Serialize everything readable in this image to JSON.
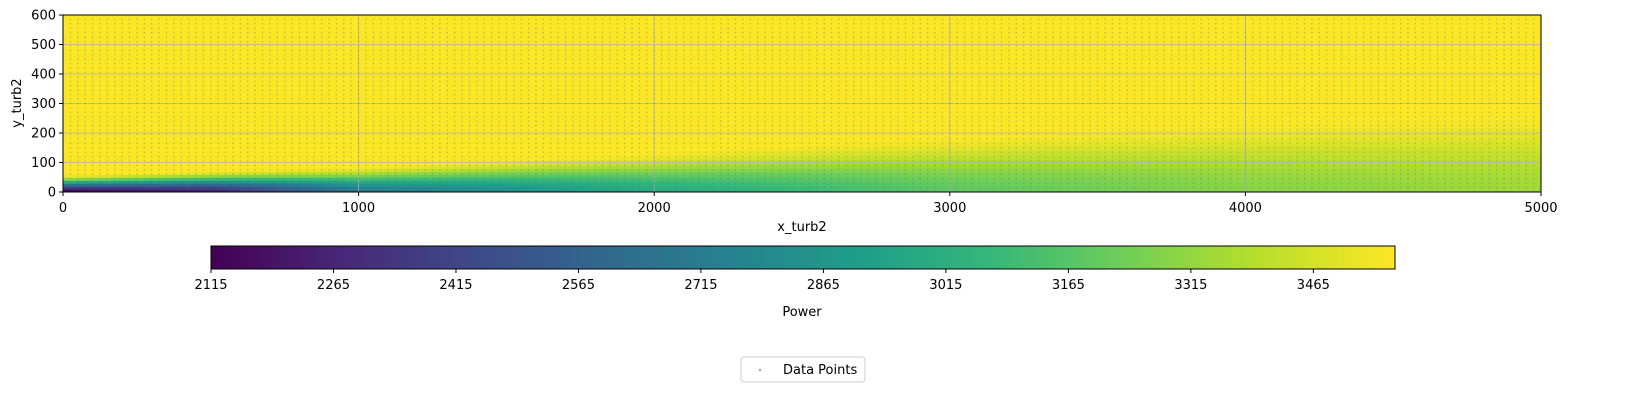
{
  "chart_data": {
    "type": "heatmap",
    "title": "",
    "xlabel": "x_turb2",
    "ylabel": "y_turb2",
    "xlim": [
      0,
      5000
    ],
    "ylim": [
      0,
      600
    ],
    "x_ticks": [
      0,
      1000,
      2000,
      3000,
      4000,
      5000
    ],
    "y_ticks": [
      0,
      100,
      200,
      300,
      400,
      500,
      600
    ],
    "grid": true,
    "colormap": "viridis",
    "colorbar": {
      "label": "Power",
      "range": [
        2115,
        3565
      ],
      "ticks": [
        2115,
        2265,
        2415,
        2565,
        2715,
        2865,
        3015,
        3165,
        3315,
        3465
      ],
      "orientation": "horizontal"
    },
    "field_model": {
      "description_of_values": "Power over (x_turb2, y_turb2): minimum near origin, saturates at high y; wake widens with x",
      "min_power": 2115,
      "max_power": 3565,
      "wake_half_width_at_x": [
        [
          0,
          60
        ],
        [
          1000,
          90
        ],
        [
          2000,
          140
        ],
        [
          3000,
          200
        ],
        [
          4000,
          250
        ],
        [
          5000,
          290
        ]
      ],
      "wake_center_power_at_x": [
        [
          0,
          2115
        ],
        [
          500,
          2250
        ],
        [
          1000,
          2700
        ],
        [
          2000,
          3000
        ],
        [
          3000,
          3200
        ],
        [
          4000,
          3300
        ],
        [
          5000,
          3360
        ]
      ]
    },
    "scatter": {
      "name": "Data Points",
      "x_range": [
        0,
        5000
      ],
      "y_range": [
        0,
        600
      ],
      "color": "#1f77b4",
      "marker": "dot"
    },
    "legend": {
      "entries": [
        "Data Points"
      ],
      "placement": "bottom-center"
    }
  }
}
